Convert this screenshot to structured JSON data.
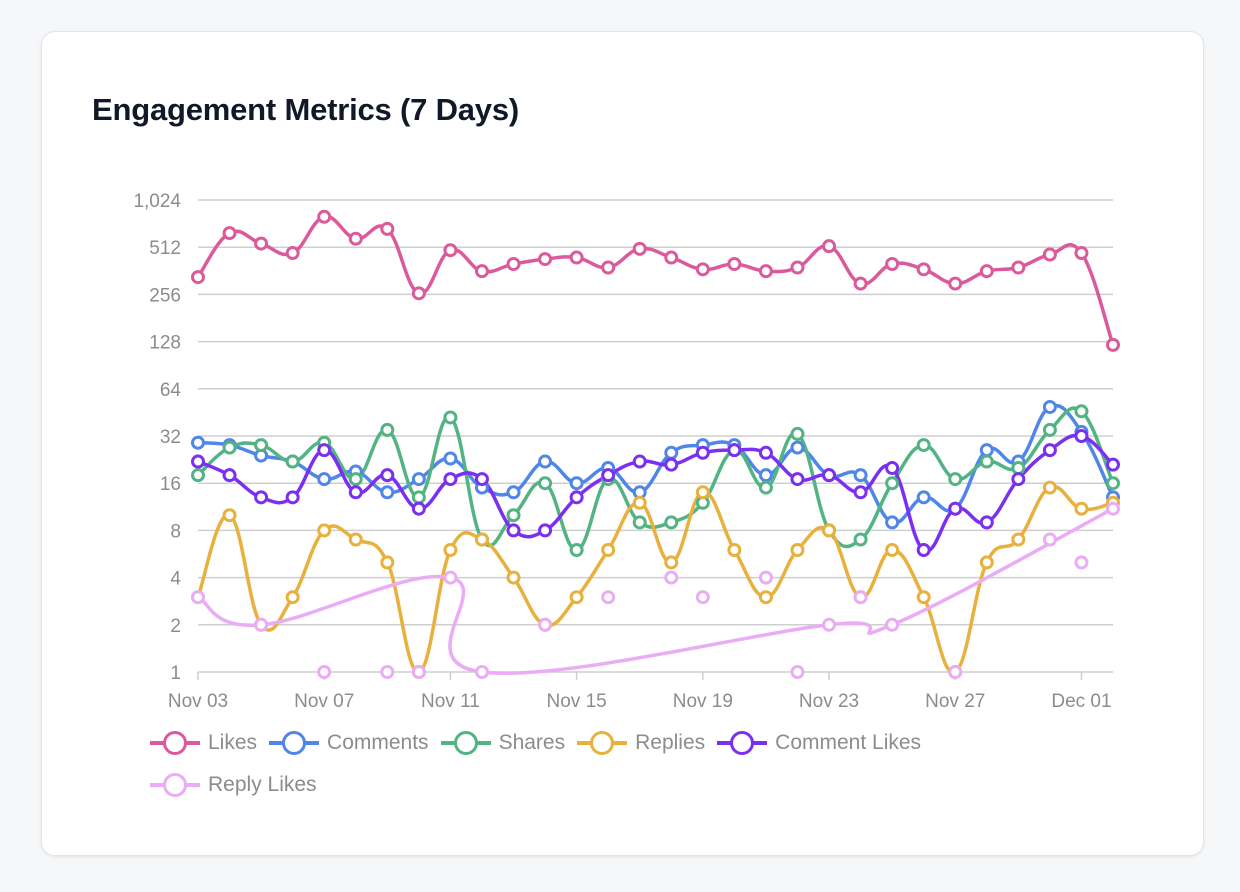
{
  "card": {
    "title": "Engagement Metrics (7 Days)"
  },
  "chart_data": {
    "type": "line",
    "title": "Engagement Metrics (7 Days)",
    "xlabel": "",
    "ylabel": "",
    "y_scale": "log2",
    "ylim": [
      1,
      1024
    ],
    "y_ticks": [
      1,
      2,
      4,
      8,
      16,
      32,
      64,
      128,
      256,
      512,
      1024
    ],
    "y_tick_labels": [
      "1",
      "2",
      "4",
      "8",
      "16",
      "32",
      "64",
      "128",
      "256",
      "512",
      "1,024"
    ],
    "grid": true,
    "legend_position": "bottom-left",
    "x": [
      "Nov 03",
      "Nov 04",
      "Nov 05",
      "Nov 06",
      "Nov 07",
      "Nov 08",
      "Nov 09",
      "Nov 10",
      "Nov 11",
      "Nov 12",
      "Nov 13",
      "Nov 14",
      "Nov 15",
      "Nov 16",
      "Nov 17",
      "Nov 18",
      "Nov 19",
      "Nov 20",
      "Nov 21",
      "Nov 22",
      "Nov 23",
      "Nov 24",
      "Nov 25",
      "Nov 26",
      "Nov 27",
      "Nov 28",
      "Nov 29",
      "Nov 30",
      "Dec 01",
      "Dec 02"
    ],
    "x_tick_labels": [
      "Nov 03",
      "Nov 07",
      "Nov 11",
      "Nov 15",
      "Nov 19",
      "Nov 23",
      "Nov 27",
      "Dec 01"
    ],
    "series": [
      {
        "name": "Likes",
        "color": "#db5a9b",
        "values": [
          330,
          630,
          540,
          470,
          800,
          580,
          670,
          260,
          490,
          360,
          400,
          430,
          440,
          380,
          500,
          440,
          370,
          400,
          360,
          380,
          520,
          300,
          400,
          370,
          300,
          360,
          380,
          460,
          470,
          122
        ]
      },
      {
        "name": "Comments",
        "color": "#4f86e8",
        "values": [
          29,
          28,
          24,
          22,
          17,
          19,
          14,
          17,
          23,
          15,
          14,
          22,
          16,
          20,
          14,
          25,
          28,
          28,
          18,
          27,
          18,
          18,
          9,
          13,
          11,
          26,
          22,
          49,
          34,
          13
        ]
      },
      {
        "name": "Shares",
        "color": "#52b383",
        "values": [
          18,
          27,
          28,
          22,
          29,
          17,
          35,
          13,
          42,
          7,
          10,
          16,
          6,
          17,
          9,
          9,
          12,
          26,
          15,
          33,
          8,
          7,
          16,
          28,
          17,
          22,
          20,
          35,
          46,
          16
        ]
      },
      {
        "name": "Replies",
        "color": "#e8b03c",
        "values": [
          3,
          10,
          2,
          3,
          8,
          7,
          5,
          1,
          6,
          7,
          4,
          2,
          3,
          6,
          12,
          5,
          14,
          6,
          3,
          6,
          8,
          3,
          6,
          3,
          1,
          5,
          7,
          15,
          11,
          12
        ]
      },
      {
        "name": "Comment Likes",
        "color": "#7b2ff0",
        "values": [
          22,
          18,
          13,
          13,
          26,
          14,
          18,
          11,
          17,
          17,
          8,
          8,
          13,
          18,
          22,
          21,
          25,
          26,
          25,
          17,
          18,
          14,
          20,
          6,
          11,
          9,
          17,
          26,
          32,
          21
        ]
      },
      {
        "name": "Reply Likes",
        "color": "#eaacf5",
        "values": [
          3,
          null,
          2,
          null,
          1,
          null,
          1,
          1,
          4,
          1,
          null,
          2,
          null,
          3,
          null,
          4,
          3,
          null,
          4,
          1,
          2,
          3,
          2,
          null,
          1,
          null,
          null,
          7,
          5,
          11
        ],
        "line_through": [
          0,
          2,
          8,
          9,
          12,
          20,
          22,
          23,
          29
        ]
      }
    ]
  },
  "legend": [
    {
      "label": "Likes",
      "color": "#db5a9b"
    },
    {
      "label": "Comments",
      "color": "#4f86e8"
    },
    {
      "label": "Shares",
      "color": "#52b383"
    },
    {
      "label": "Replies",
      "color": "#e8b03c"
    },
    {
      "label": "Comment Likes",
      "color": "#7b2ff0"
    },
    {
      "label": "Reply Likes",
      "color": "#eaacf5"
    }
  ]
}
